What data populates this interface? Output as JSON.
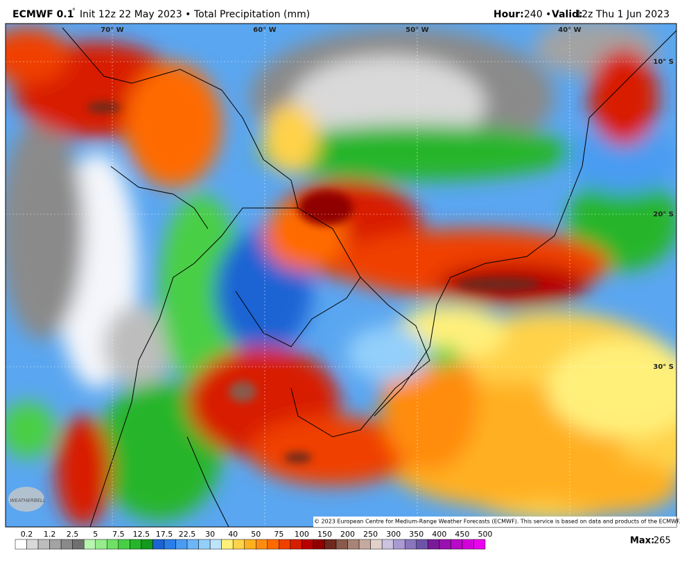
{
  "header": {
    "model": "ECMWF 0.1",
    "degree": "°",
    "run": "Init 12z 22 May 2023 • Total Precipitation (mm)",
    "hour_label": "Hour:",
    "hour": "240 •",
    "valid_label": "Valid:",
    "valid": "12z Thu 1 Jun 2023"
  },
  "map": {
    "longitudes": [
      "70° W",
      "60° W",
      "50° W",
      "40° W"
    ],
    "latitudes": [
      "10° S",
      "20° S",
      "30° S"
    ],
    "copyright": "© 2023 European Centre for Medium-Range Weather Forecasts (ECMWF). This service is based on data and products of the ECMWF.",
    "logo": "WEATHERBELL"
  },
  "colorbar": {
    "levels": [
      0.2,
      1.2,
      2.5,
      5,
      7.5,
      12.5,
      17.5,
      22.5,
      30,
      40,
      50,
      75,
      100,
      150,
      200,
      250,
      300,
      350,
      400,
      450,
      500
    ],
    "colors": [
      "#ffffff",
      "#d9d9d9",
      "#bdbdbd",
      "#a3a3a3",
      "#8a8a8a",
      "#707070",
      "#b8f5b0",
      "#94ec8a",
      "#6fe066",
      "#48cf45",
      "#25b52a",
      "#129a1c",
      "#1c64d4",
      "#2a7fe8",
      "#4a9cf2",
      "#6cb6f7",
      "#93cffb",
      "#bde4fd",
      "#fff07a",
      "#ffd24a",
      "#ffb020",
      "#ff8c10",
      "#ff6a00",
      "#f04000",
      "#d81e00",
      "#b80000",
      "#900000",
      "#6e2a1e",
      "#8a5a4c",
      "#a88478",
      "#c6aaa0",
      "#e2d0ca",
      "#cbc3e0",
      "#a99bd0",
      "#8a76bd",
      "#6c52a8",
      "#7a1a9a",
      "#9a10b0",
      "#b808c8",
      "#d400dc",
      "#ea00ee"
    ]
  },
  "footer": {
    "max_label": "Max:",
    "max": 265
  }
}
